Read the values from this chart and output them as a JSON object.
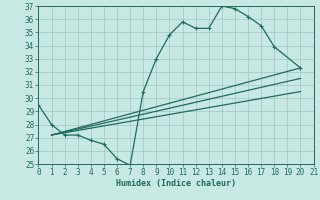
{
  "xlabel": "Humidex (Indice chaleur)",
  "xlim": [
    0,
    21
  ],
  "ylim": [
    25,
    37
  ],
  "yticks": [
    25,
    26,
    27,
    28,
    29,
    30,
    31,
    32,
    33,
    34,
    35,
    36,
    37
  ],
  "xticks": [
    0,
    1,
    2,
    3,
    4,
    5,
    6,
    7,
    8,
    9,
    10,
    11,
    12,
    13,
    14,
    15,
    16,
    17,
    18,
    19,
    20,
    21
  ],
  "line_color": "#1e6b60",
  "bg_color": "#c8e8e4",
  "grid_color": "#a0c8c4",
  "curve_x": [
    0,
    1,
    2,
    3,
    4,
    5,
    6,
    7,
    8,
    9,
    10,
    11,
    12,
    13,
    14,
    15,
    16,
    17,
    18,
    20
  ],
  "curve_y": [
    29.5,
    28.0,
    27.2,
    27.2,
    26.8,
    26.5,
    25.4,
    24.9,
    30.5,
    33.0,
    34.8,
    35.8,
    35.3,
    35.3,
    37.0,
    36.8,
    36.2,
    35.5,
    33.9,
    32.3
  ],
  "linear_lines": [
    {
      "x": [
        1,
        20
      ],
      "y": [
        27.2,
        32.3
      ]
    },
    {
      "x": [
        1,
        20
      ],
      "y": [
        27.2,
        31.5
      ]
    },
    {
      "x": [
        1,
        20
      ],
      "y": [
        27.2,
        30.5
      ]
    }
  ]
}
